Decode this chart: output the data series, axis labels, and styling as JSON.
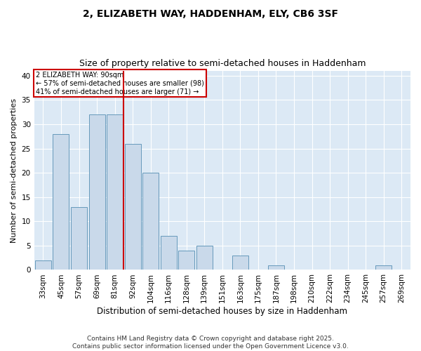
{
  "title": "2, ELIZABETH WAY, HADDENHAM, ELY, CB6 3SF",
  "subtitle": "Size of property relative to semi-detached houses in Haddenham",
  "xlabel": "Distribution of semi-detached houses by size in Haddenham",
  "ylabel": "Number of semi-detached properties",
  "bar_labels": [
    "33sqm",
    "45sqm",
    "57sqm",
    "69sqm",
    "81sqm",
    "92sqm",
    "104sqm",
    "116sqm",
    "128sqm",
    "139sqm",
    "151sqm",
    "163sqm",
    "175sqm",
    "187sqm",
    "198sqm",
    "210sqm",
    "222sqm",
    "234sqm",
    "245sqm",
    "257sqm",
    "269sqm"
  ],
  "bar_values": [
    2,
    28,
    13,
    32,
    32,
    26,
    20,
    7,
    4,
    5,
    0,
    3,
    0,
    1,
    0,
    0,
    0,
    0,
    0,
    1,
    0
  ],
  "bar_color": "#c9d9ea",
  "bar_edge_color": "#6699bb",
  "vline_color": "#cc0000",
  "annotation_title": "2 ELIZABETH WAY: 90sqm",
  "annotation_line2": "← 57% of semi-detached houses are smaller (98)",
  "annotation_line3": "41% of semi-detached houses are larger (71) →",
  "annotation_box_color": "#cc0000",
  "ylim": [
    0,
    41
  ],
  "yticks": [
    0,
    5,
    10,
    15,
    20,
    25,
    30,
    35,
    40
  ],
  "footer": "Contains HM Land Registry data © Crown copyright and database right 2025.\nContains public sector information licensed under the Open Government Licence v3.0.",
  "fig_bg_color": "#ffffff",
  "plot_bg_color": "#dce9f5",
  "title_fontsize": 10,
  "subtitle_fontsize": 9,
  "axis_label_fontsize": 8,
  "tick_fontsize": 7.5,
  "footer_fontsize": 6.5
}
